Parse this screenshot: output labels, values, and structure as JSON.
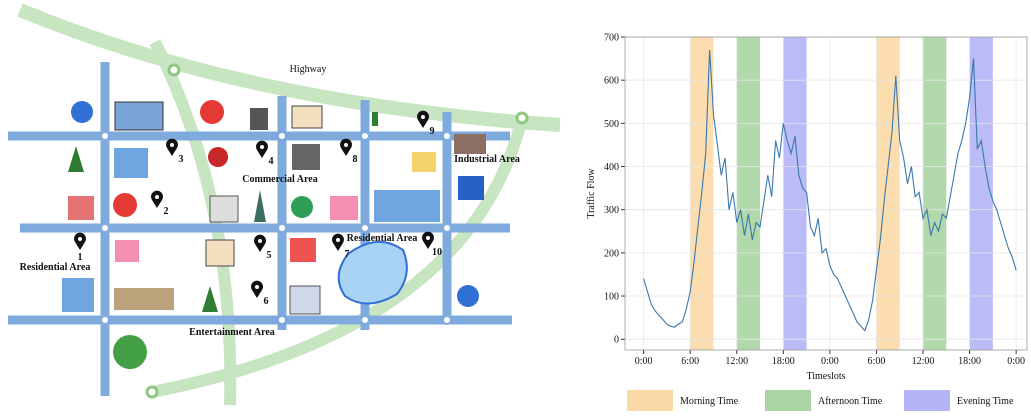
{
  "map": {
    "labels": [
      "Highway",
      "Commercial Area",
      "Industrial Area",
      "Residential Area",
      "Residential Area",
      "Entertainment Area"
    ],
    "pins": [
      "1",
      "2",
      "3",
      "4",
      "5",
      "6",
      "7",
      "8",
      "9",
      "10"
    ]
  },
  "chart_data": {
    "type": "line",
    "color": "#3a78ad",
    "xlabel": "Timeslots",
    "ylabel": "Traffic Flow",
    "x": [
      0,
      0.5,
      1,
      1.5,
      2,
      2.5,
      3,
      3.5,
      4,
      4.5,
      5,
      5.5,
      6,
      6.5,
      7,
      7.5,
      8,
      8.5,
      9,
      9.5,
      10,
      10.5,
      11,
      11.5,
      12,
      12.5,
      13,
      13.5,
      14,
      14.5,
      15,
      15.5,
      16,
      16.5,
      17,
      17.5,
      18,
      18.5,
      19,
      19.5,
      20,
      20.5,
      21,
      21.5,
      22,
      22.5,
      23,
      23.5,
      24,
      24.5,
      25,
      25.5,
      26,
      26.5,
      27,
      27.5,
      28,
      28.5,
      29,
      29.5,
      30,
      30.5,
      31,
      31.5,
      32,
      32.5,
      33,
      33.5,
      34,
      34.5,
      35,
      35.5,
      36,
      36.5,
      37,
      37.5,
      38,
      38.5,
      39,
      39.5,
      40,
      40.5,
      41,
      41.5,
      42,
      42.5,
      43,
      43.5,
      44,
      44.5,
      45,
      45.5,
      46,
      46.5,
      47,
      47.5,
      48
    ],
    "values": [
      140,
      110,
      80,
      65,
      55,
      45,
      35,
      30,
      28,
      35,
      40,
      70,
      110,
      180,
      260,
      340,
      430,
      670,
      520,
      450,
      380,
      420,
      300,
      340,
      270,
      300,
      240,
      290,
      230,
      270,
      260,
      320,
      380,
      330,
      460,
      420,
      500,
      460,
      430,
      470,
      380,
      350,
      340,
      260,
      240,
      280,
      200,
      210,
      170,
      150,
      140,
      120,
      100,
      80,
      60,
      40,
      30,
      20,
      45,
      90,
      160,
      230,
      320,
      400,
      480,
      610,
      460,
      420,
      360,
      400,
      330,
      340,
      280,
      300,
      240,
      270,
      250,
      290,
      280,
      330,
      380,
      430,
      460,
      500,
      560,
      650,
      440,
      460,
      400,
      350,
      320,
      300,
      270,
      240,
      210,
      190,
      160
    ],
    "xlim": [
      -2.4,
      49.4
    ],
    "ylim": [
      -25,
      700
    ],
    "xticks": [
      {
        "value": 0,
        "label": "0:00"
      },
      {
        "value": 6,
        "label": "6:00"
      },
      {
        "value": 12,
        "label": "12:00"
      },
      {
        "value": 18,
        "label": "18:00"
      },
      {
        "value": 24,
        "label": "0:00"
      },
      {
        "value": 30,
        "label": "6:00"
      },
      {
        "value": 36,
        "label": "12:00"
      },
      {
        "value": 42,
        "label": "18:00"
      },
      {
        "value": 48,
        "label": "0:00"
      }
    ],
    "yticks": [
      0,
      100,
      200,
      300,
      400,
      500,
      600,
      700
    ],
    "grid": true,
    "shaded_periods": [
      {
        "name": "Morning Time",
        "color": "#fbd9a6",
        "spans": [
          [
            6,
            9
          ],
          [
            30,
            33
          ]
        ]
      },
      {
        "name": "Afternoon Time",
        "color": "#a8d5a2",
        "spans": [
          [
            12,
            15
          ],
          [
            36,
            39
          ]
        ]
      },
      {
        "name": "Evening Time",
        "color": "#b4b4f6",
        "spans": [
          [
            18,
            21
          ],
          [
            42,
            45
          ]
        ]
      }
    ]
  }
}
